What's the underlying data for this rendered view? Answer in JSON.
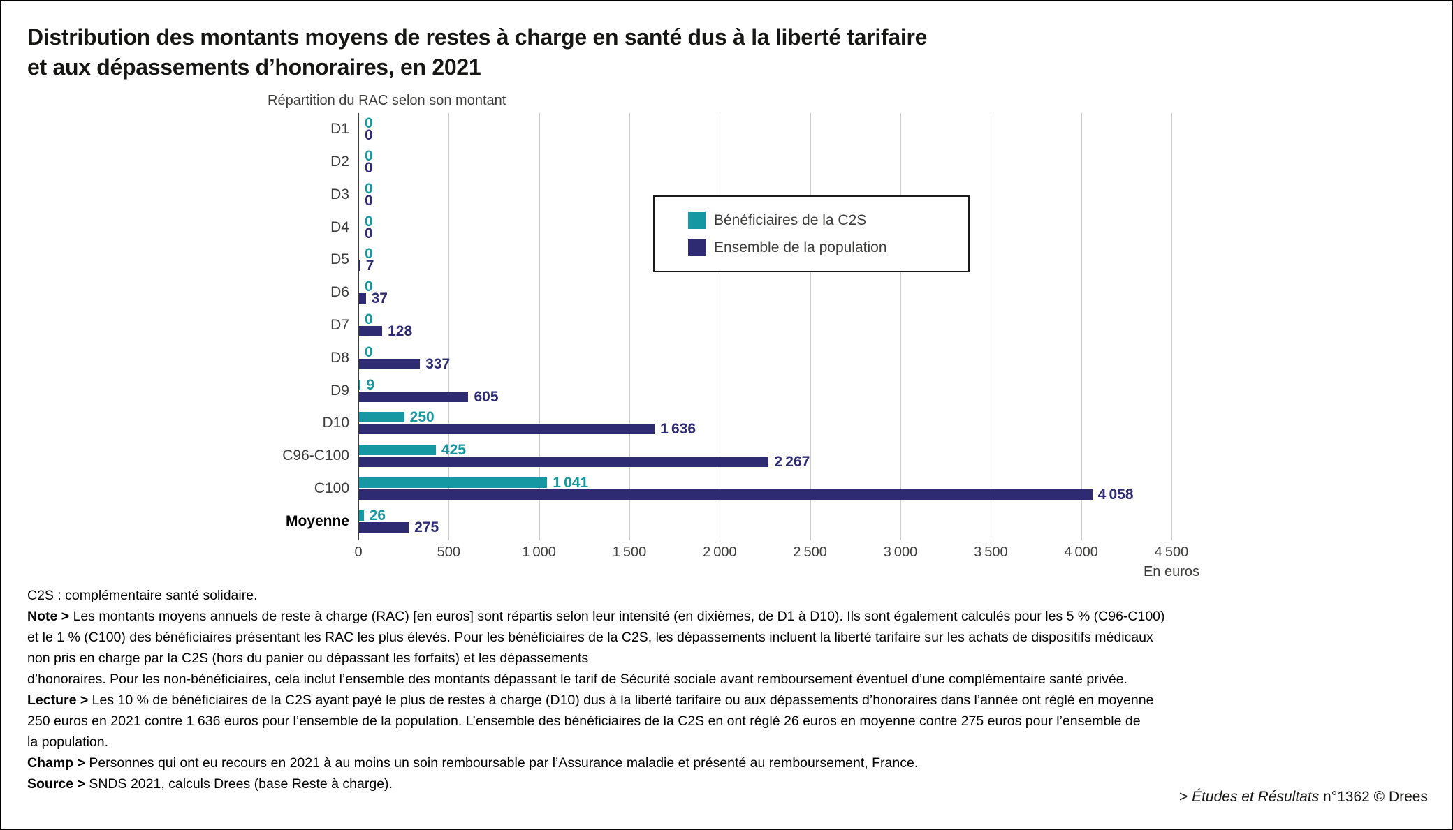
{
  "header": {
    "title_line1": "Distribution des montants moyens de restes à charge en santé dus à la liberté tarifaire",
    "title_line2": "et aux dépassements d’honoraires, en 2021"
  },
  "chart_data": {
    "type": "bar",
    "orientation": "horizontal",
    "title": "Répartition du RAC selon son montant",
    "unit_label": "En euros",
    "categories": [
      "D1",
      "D2",
      "D3",
      "D4",
      "D5",
      "D6",
      "D7",
      "D8",
      "D9",
      "D10",
      "C96-C100",
      "C100",
      "Moyenne"
    ],
    "emphasized_category": "Moyenne",
    "series": [
      {
        "name": "Bénéficiaires de la C2S",
        "color": "#1598A1",
        "values": [
          0,
          0,
          0,
          0,
          0,
          0,
          0,
          0,
          9,
          250,
          425,
          1041,
          26
        ]
      },
      {
        "name": "Ensemble de la population",
        "color": "#2E2B72",
        "values": [
          0,
          0,
          0,
          0,
          7,
          37,
          128,
          337,
          605,
          1636,
          2267,
          4058,
          275
        ]
      }
    ],
    "x_ticks": [
      0,
      500,
      1000,
      1500,
      2000,
      2500,
      3000,
      3500,
      4000,
      4500
    ],
    "xlim": [
      0,
      4500
    ],
    "grid": true,
    "legend_position": "inside-top-right",
    "value_labels": true,
    "grid_color": "#CBCBCB",
    "axis_color": "#3c3c3b"
  },
  "notes": [
    {
      "text": "C2S : complémentaire santé solidaire."
    },
    {
      "bold": "Note >",
      "text": "Les montants moyens annuels de reste à charge (RAC) [en euros] sont répartis selon leur intensité (en dixièmes, de D1 à D10). Ils sont également calculés pour les 5 % (C96-C100)"
    },
    {
      "text": "et le 1 % (C100) des bénéficiaires présentant les RAC les plus élevés. Pour les bénéficiaires de la C2S, les dépassements incluent la liberté tarifaire sur les achats de dispositifs médicaux"
    },
    {
      "text": "non pris en charge par la C2S (hors du panier ou dépassant les forfaits) et les dépassements"
    },
    {
      "text": "d’honoraires. Pour les non-bénéficiaires, cela inclut l’ensemble des montants dépassant le tarif de Sécurité sociale avant remboursement éventuel d’une complémentaire santé privée."
    },
    {
      "bold": "Lecture >",
      "text": "Les 10 % de bénéficiaires de la C2S ayant payé le plus de restes à charge (D10) dus à la liberté tarifaire ou aux dépassements d’honoraires dans l’année ont réglé en moyenne"
    },
    {
      "text": "250 euros en 2021 contre 1 636 euros pour l’ensemble de la population. L’ensemble des bénéficiaires de la C2S en ont réglé 26 euros en moyenne contre 275 euros pour l’ensemble de"
    },
    {
      "text": "la population."
    },
    {
      "bold": "Champ >",
      "text": "Personnes qui ont eu recours en 2021 à au moins un soin remboursable par l’Assurance maladie et présenté au remboursement, France."
    },
    {
      "bold": "Source >",
      "text": "SNDS 2021, calculs Drees (base Reste à charge)."
    }
  ],
  "footer": {
    "prefix": "> ",
    "italic": "Études et Résultats",
    "suffix": " n°1362 © Drees"
  }
}
